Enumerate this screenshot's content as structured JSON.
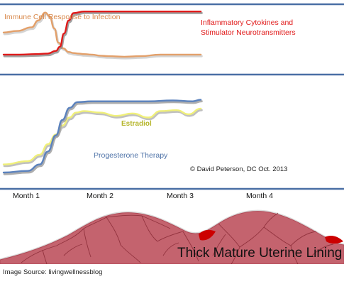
{
  "chart_data": [
    {
      "type": "line",
      "panel": "top",
      "annotations": [
        {
          "text": "Immune Cell Response to Infection",
          "color": "#d8884a"
        },
        {
          "text": "Inflammatory Cytokines and",
          "color": "#e01818"
        },
        {
          "text": "Stimulator Neurotransmitters",
          "color": "#e01818"
        }
      ],
      "x": [
        "Month 1",
        "Month 2",
        "Month 3",
        "Month 4"
      ],
      "series": [
        {
          "name": "Immune Cell Response to Infection",
          "color": "#e3a06a",
          "shadow": "#c9c9c9",
          "points": [
            [
              0,
              0.57
            ],
            [
              0.17,
              0.6
            ],
            [
              0.35,
              0.67
            ],
            [
              0.43,
              0.8
            ],
            [
              0.52,
              0.95
            ],
            [
              0.57,
              0.88
            ],
            [
              0.63,
              0.65
            ],
            [
              0.68,
              0.38
            ],
            [
              0.74,
              0.27
            ],
            [
              0.81,
              0.2
            ],
            [
              0.87,
              0.18
            ],
            [
              0.93,
              0.17
            ],
            [
              1,
              0.16
            ],
            [
              1.1,
              0.15
            ],
            [
              1.2,
              0.13
            ],
            [
              1.3,
              0.12
            ],
            [
              1.5,
              0.11
            ],
            [
              1.7,
              0.12
            ],
            [
              1.95,
              0.15
            ],
            [
              2.2,
              0.15
            ],
            [
              2.45,
              0.15
            ]
          ]
        },
        {
          "name": "Inflammatory Cytokines and Stimulator Neurotransmitters",
          "color": "#e01a1a",
          "shadow": "#8a8a8a",
          "points": [
            [
              0,
              0.15
            ],
            [
              0.2,
              0.15
            ],
            [
              0.4,
              0.16
            ],
            [
              0.55,
              0.17
            ],
            [
              0.65,
              0.22
            ],
            [
              0.7,
              0.3
            ],
            [
              0.75,
              0.55
            ],
            [
              0.81,
              0.8
            ],
            [
              0.87,
              0.94
            ],
            [
              1,
              0.97
            ],
            [
              1.3,
              0.97
            ],
            [
              1.6,
              0.97
            ],
            [
              2,
              0.97
            ],
            [
              2.45,
              0.97
            ]
          ]
        }
      ]
    },
    {
      "type": "line",
      "panel": "middle",
      "annotations": [
        {
          "text": "Estradiol",
          "color": "#b5b52a"
        },
        {
          "text": "Progesterone Therapy",
          "color": "#4f73a8"
        },
        {
          "text": "© David Peterson, DC Oct. 2013",
          "color": "#222222"
        }
      ],
      "series": [
        {
          "name": "Estradiol",
          "color": "#f0f07a",
          "shadow": "#b0b0b0",
          "points": [
            [
              0,
              0.1
            ],
            [
              0.3,
              0.14
            ],
            [
              0.45,
              0.22
            ],
            [
              0.55,
              0.35
            ],
            [
              0.65,
              0.47
            ],
            [
              0.73,
              0.58
            ],
            [
              0.82,
              0.68
            ],
            [
              0.9,
              0.74
            ],
            [
              1,
              0.76
            ],
            [
              1.2,
              0.74
            ],
            [
              1.4,
              0.7
            ],
            [
              1.6,
              0.73
            ],
            [
              1.8,
              0.68
            ],
            [
              1.95,
              0.76
            ],
            [
              2.15,
              0.77
            ],
            [
              2.3,
              0.72
            ],
            [
              2.45,
              0.79
            ]
          ]
        },
        {
          "name": "Progesterone Therapy",
          "color": "#5b82bd",
          "shadow": "#9a9a9a",
          "points": [
            [
              0,
              0.0
            ],
            [
              0.3,
              0.02
            ],
            [
              0.45,
              0.1
            ],
            [
              0.55,
              0.26
            ],
            [
              0.65,
              0.46
            ],
            [
              0.73,
              0.65
            ],
            [
              0.82,
              0.8
            ],
            [
              0.92,
              0.87
            ],
            [
              1.1,
              0.88
            ],
            [
              1.4,
              0.88
            ],
            [
              1.8,
              0.88
            ],
            [
              2.1,
              0.89
            ],
            [
              2.35,
              0.88
            ],
            [
              2.45,
              0.9
            ]
          ]
        }
      ]
    }
  ],
  "x_axis": {
    "ticks": [
      "Month 1",
      "Month 2",
      "Month 3",
      "Month 4"
    ]
  },
  "rules_color": "#4a6fa5",
  "lining": {
    "label": "Thick Mature Uterine Lining",
    "fill": "#c4636e",
    "vein": "#8a2a36",
    "blood": "#cc0000"
  },
  "source": "Image Source: livingwellnessblog"
}
